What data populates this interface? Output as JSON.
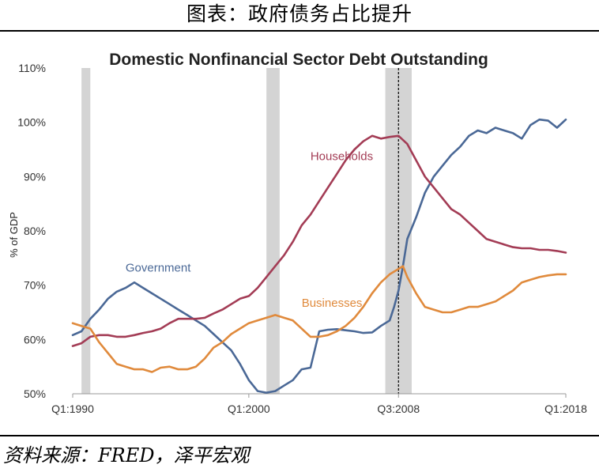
{
  "header": {
    "title": "图表：政府债务占比提升"
  },
  "footer": {
    "source": "资料来源：FRED，泽平宏观"
  },
  "chart_data": {
    "type": "line",
    "title": "Domestic Nonfinancial Sector Debt Outstanding",
    "xlabel": "",
    "ylabel": "% of GDP",
    "ylim": [
      50,
      110
    ],
    "yticks": [
      "50%",
      "60%",
      "70%",
      "80%",
      "90%",
      "100%",
      "110%"
    ],
    "ytick_values": [
      50,
      60,
      70,
      80,
      90,
      100,
      110
    ],
    "xlim": [
      1990.0,
      2018.0
    ],
    "xtick_labels": [
      "Q1:1990",
      "Q1:2000",
      "Q3:2008",
      "Q1:2018"
    ],
    "xtick_values": [
      1990.0,
      2000.0,
      2008.5,
      2018.0
    ],
    "grid": false,
    "legend": "inline labels",
    "recessions": [
      [
        1990.5,
        1991.0
      ],
      [
        2001.0,
        2001.75
      ],
      [
        2007.75,
        2009.25
      ]
    ],
    "reference_line": 2008.5,
    "colors": {
      "recession": "#d4d4d4",
      "reference": "#000000"
    },
    "series": [
      {
        "name": "Government",
        "color": "#4a6896",
        "x": [
          1990.0,
          1990.5,
          1991.0,
          1991.5,
          1992.0,
          1992.5,
          1993.0,
          1993.5,
          1994.0,
          1994.5,
          1995.0,
          1995.5,
          1996.0,
          1996.5,
          1997.0,
          1997.5,
          1998.0,
          1998.5,
          1999.0,
          1999.5,
          2000.0,
          2000.5,
          2001.0,
          2001.5,
          2002.0,
          2002.5,
          2003.0,
          2003.5,
          2004.0,
          2004.5,
          2005.0,
          2005.5,
          2006.0,
          2006.5,
          2007.0,
          2007.5,
          2008.0,
          2008.25,
          2008.5,
          2008.75,
          2009.0,
          2009.5,
          2010.0,
          2010.5,
          2011.0,
          2011.5,
          2012.0,
          2012.5,
          2013.0,
          2013.5,
          2014.0,
          2014.5,
          2015.0,
          2015.5,
          2016.0,
          2016.5,
          2017.0,
          2017.5,
          2018.0
        ],
        "values": [
          60.8,
          61.5,
          63.8,
          65.5,
          67.5,
          68.8,
          69.5,
          70.5,
          69.5,
          68.5,
          67.5,
          66.5,
          65.5,
          64.5,
          63.5,
          62.5,
          61.0,
          59.5,
          58.0,
          55.5,
          52.5,
          50.5,
          50.2,
          50.5,
          51.5,
          52.5,
          54.5,
          54.8,
          61.5,
          61.8,
          61.9,
          61.7,
          61.5,
          61.2,
          61.3,
          62.5,
          63.5,
          66.0,
          69.0,
          73.5,
          78.5,
          82.5,
          87.0,
          90.0,
          92.0,
          94.0,
          95.5,
          97.5,
          98.5,
          98.0,
          99.0,
          98.5,
          98.0,
          97.0,
          99.5,
          100.5,
          100.3,
          99.0,
          100.5
        ]
      },
      {
        "name": "Households",
        "color": "#a33c55",
        "x": [
          1990.0,
          1990.5,
          1991.0,
          1991.5,
          1992.0,
          1992.5,
          1993.0,
          1993.5,
          1994.0,
          1994.5,
          1995.0,
          1995.5,
          1996.0,
          1996.5,
          1997.0,
          1997.5,
          1998.0,
          1998.5,
          1999.0,
          1999.5,
          2000.0,
          2000.5,
          2001.0,
          2001.5,
          2002.0,
          2002.5,
          2003.0,
          2003.5,
          2004.0,
          2004.5,
          2005.0,
          2005.5,
          2006.0,
          2006.5,
          2007.0,
          2007.5,
          2008.0,
          2008.5,
          2009.0,
          2009.5,
          2010.0,
          2010.5,
          2011.0,
          2011.5,
          2012.0,
          2012.5,
          2013.0,
          2013.5,
          2014.0,
          2014.5,
          2015.0,
          2015.5,
          2016.0,
          2016.5,
          2017.0,
          2017.5,
          2018.0
        ],
        "values": [
          58.8,
          59.3,
          60.5,
          60.8,
          60.8,
          60.5,
          60.5,
          60.8,
          61.2,
          61.5,
          62.0,
          63.0,
          63.8,
          63.8,
          63.8,
          64.0,
          64.8,
          65.5,
          66.5,
          67.5,
          68.0,
          69.5,
          71.5,
          73.5,
          75.5,
          78.0,
          81.0,
          83.0,
          85.5,
          88.0,
          90.5,
          93.0,
          95.0,
          96.5,
          97.5,
          97.0,
          97.3,
          97.5,
          96.0,
          93.0,
          90.0,
          88.0,
          86.0,
          84.0,
          83.0,
          81.5,
          80.0,
          78.5,
          78.0,
          77.5,
          77.0,
          76.8,
          76.8,
          76.5,
          76.5,
          76.3,
          76.0
        ]
      },
      {
        "name": "Businesses",
        "color": "#e08a3c",
        "x": [
          1990.0,
          1990.5,
          1991.0,
          1991.5,
          1992.0,
          1992.5,
          1993.0,
          1993.5,
          1994.0,
          1994.5,
          1995.0,
          1995.5,
          1996.0,
          1996.5,
          1997.0,
          1997.5,
          1998.0,
          1998.5,
          1999.0,
          1999.5,
          2000.0,
          2000.5,
          2001.0,
          2001.5,
          2002.0,
          2002.5,
          2003.0,
          2003.5,
          2004.0,
          2004.5,
          2005.0,
          2005.5,
          2006.0,
          2006.5,
          2007.0,
          2007.5,
          2008.0,
          2008.5,
          2008.75,
          2009.0,
          2009.5,
          2010.0,
          2010.5,
          2011.0,
          2011.5,
          2012.0,
          2012.5,
          2013.0,
          2013.5,
          2014.0,
          2014.5,
          2015.0,
          2015.5,
          2016.0,
          2016.5,
          2017.0,
          2017.5,
          2018.0
        ],
        "values": [
          63.0,
          62.5,
          62.0,
          59.5,
          57.5,
          55.5,
          55.0,
          54.5,
          54.5,
          54.0,
          54.8,
          55.0,
          54.5,
          54.5,
          55.0,
          56.5,
          58.5,
          59.5,
          61.0,
          62.0,
          63.0,
          63.5,
          64.0,
          64.5,
          64.0,
          63.5,
          62.0,
          60.5,
          60.5,
          60.8,
          61.5,
          62.5,
          64.0,
          66.0,
          68.5,
          70.5,
          72.0,
          73.0,
          73.5,
          71.5,
          68.5,
          66.0,
          65.5,
          65.0,
          65.0,
          65.5,
          66.0,
          66.0,
          66.5,
          67.0,
          68.0,
          69.0,
          70.5,
          71.0,
          71.5,
          71.8,
          72.0,
          72.0
        ]
      }
    ],
    "labels": [
      {
        "series": "Households",
        "text": "Households",
        "x": 2003.5,
        "y": 93.0
      },
      {
        "series": "Government",
        "text": "Government",
        "x": 1993.0,
        "y": 72.5
      },
      {
        "series": "Businesses",
        "text": "Businesses",
        "x": 2003.0,
        "y": 66.0
      }
    ]
  }
}
